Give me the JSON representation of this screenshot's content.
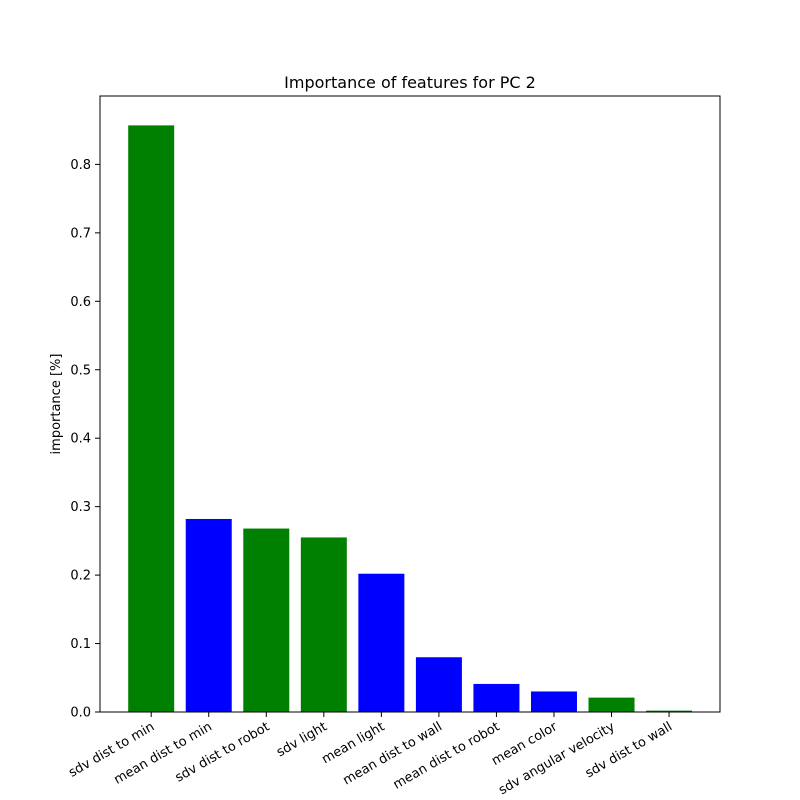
{
  "chart_data": {
    "type": "bar",
    "title": "Importance of features for PC 2",
    "xlabel": "",
    "ylabel": "importance [%]",
    "ylim": [
      0,
      0.9
    ],
    "yticks": [
      0.0,
      0.1,
      0.2,
      0.3,
      0.4,
      0.5,
      0.6,
      0.7,
      0.8
    ],
    "ytick_labels": [
      "0.0",
      "0.1",
      "0.2",
      "0.3",
      "0.4",
      "0.5",
      "0.6",
      "0.7",
      "0.8"
    ],
    "categories": [
      "sdv dist to min",
      "mean dist to min",
      "sdv dist to robot",
      "sdv light",
      "mean light",
      "mean dist to wall",
      "mean dist to robot",
      "mean color",
      "sdv angular velocity",
      "sdv dist to wall"
    ],
    "values": [
      0.857,
      0.282,
      0.268,
      0.255,
      0.202,
      0.08,
      0.041,
      0.03,
      0.021,
      0.002
    ],
    "bar_colors": [
      "#008000",
      "#0000ff",
      "#008000",
      "#008000",
      "#0000ff",
      "#0000ff",
      "#0000ff",
      "#0000ff",
      "#008000",
      "#008000"
    ],
    "grid": false,
    "legend": "none"
  }
}
